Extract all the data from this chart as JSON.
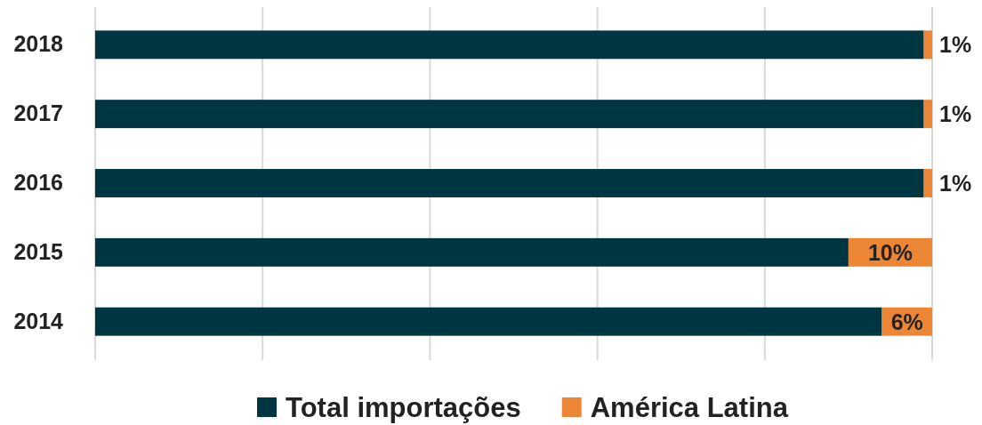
{
  "chart_data": {
    "type": "bar",
    "orientation": "horizontal",
    "stacked": true,
    "categories": [
      "2018",
      "2017",
      "2016",
      "2015",
      "2014"
    ],
    "series": [
      {
        "name": "Total importações",
        "color": "#003641",
        "values": [
          99,
          99,
          99,
          90,
          94
        ]
      },
      {
        "name": "América Latina",
        "color": "#ed8634",
        "values": [
          1,
          1,
          1,
          10,
          6
        ],
        "value_labels": [
          "1%",
          "1%",
          "1%",
          "10%",
          "6%"
        ]
      }
    ],
    "xlim": [
      0,
      100
    ],
    "xticks": [
      {
        "value": 0,
        "label": null
      },
      {
        "value": 20,
        "label": null
      },
      {
        "value": 40,
        "label": null
      },
      {
        "value": 60,
        "label": null
      },
      {
        "value": 80,
        "label": null
      },
      {
        "value": 100,
        "label": null
      }
    ],
    "tick_labels": "y",
    "grid": "x",
    "legend": "bottom"
  }
}
